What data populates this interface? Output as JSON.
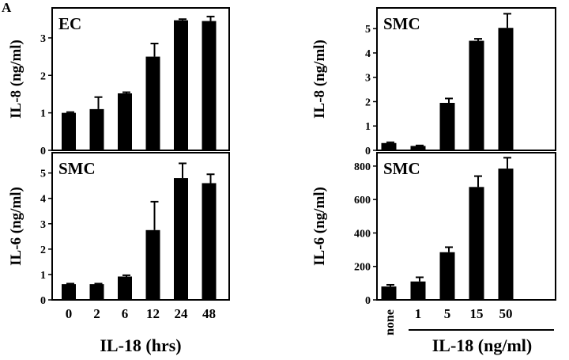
{
  "figure": {
    "panel_label": "A"
  },
  "chart_data": [
    {
      "id": "ec-il8",
      "type": "bar",
      "title": "EC",
      "ylabel": "IL-8 (ng/ml)",
      "xlabel": "",
      "categories": [
        "0",
        "2",
        "6",
        "12",
        "24",
        "48"
      ],
      "values": [
        1.0,
        1.1,
        1.52,
        2.5,
        3.47,
        3.45
      ],
      "errors": [
        0.02,
        0.32,
        0.03,
        0.35,
        0.03,
        0.12
      ],
      "ylim": [
        0,
        3.8
      ],
      "yticks": [
        0,
        1,
        2,
        3
      ],
      "show_xticklabels": false
    },
    {
      "id": "smc-il6-time",
      "type": "bar",
      "title": "SMC",
      "ylabel": "IL-6 (ng/ml)",
      "xlabel": "IL-18 (hrs)",
      "categories": [
        "0",
        "2",
        "6",
        "12",
        "24",
        "48"
      ],
      "values": [
        0.62,
        0.62,
        0.92,
        2.75,
        4.8,
        4.6
      ],
      "errors": [
        0.02,
        0.02,
        0.05,
        1.12,
        0.58,
        0.35
      ],
      "ylim": [
        0,
        5.8
      ],
      "yticks": [
        0,
        1,
        2,
        3,
        4,
        5
      ],
      "show_xticklabels": true
    },
    {
      "id": "smc-il8-dose",
      "type": "bar",
      "title": "SMC",
      "ylabel": "IL-8 (ng/ml)",
      "xlabel": "",
      "categories": [
        "none",
        "1",
        "5",
        "15",
        "50"
      ],
      "values": [
        0.3,
        0.18,
        1.95,
        4.5,
        5.03
      ],
      "errors": [
        0.03,
        0.02,
        0.18,
        0.08,
        0.58
      ],
      "ylim": [
        0,
        5.85
      ],
      "yticks": [
        0,
        1,
        2,
        3,
        4,
        5
      ],
      "show_xticklabels": false
    },
    {
      "id": "smc-il6-dose",
      "type": "bar",
      "title": "SMC",
      "ylabel": "IL-6 (ng/ml)",
      "xlabel": "IL-18 (ng/ml)",
      "categories": [
        "none",
        "1",
        "5",
        "15",
        "50"
      ],
      "values": [
        80,
        110,
        285,
        675,
        785
      ],
      "errors": [
        10,
        25,
        30,
        65,
        65
      ],
      "ylim": [
        0,
        880
      ],
      "yticks": [
        0,
        200,
        400,
        600,
        800
      ],
      "show_xticklabels": true
    }
  ]
}
